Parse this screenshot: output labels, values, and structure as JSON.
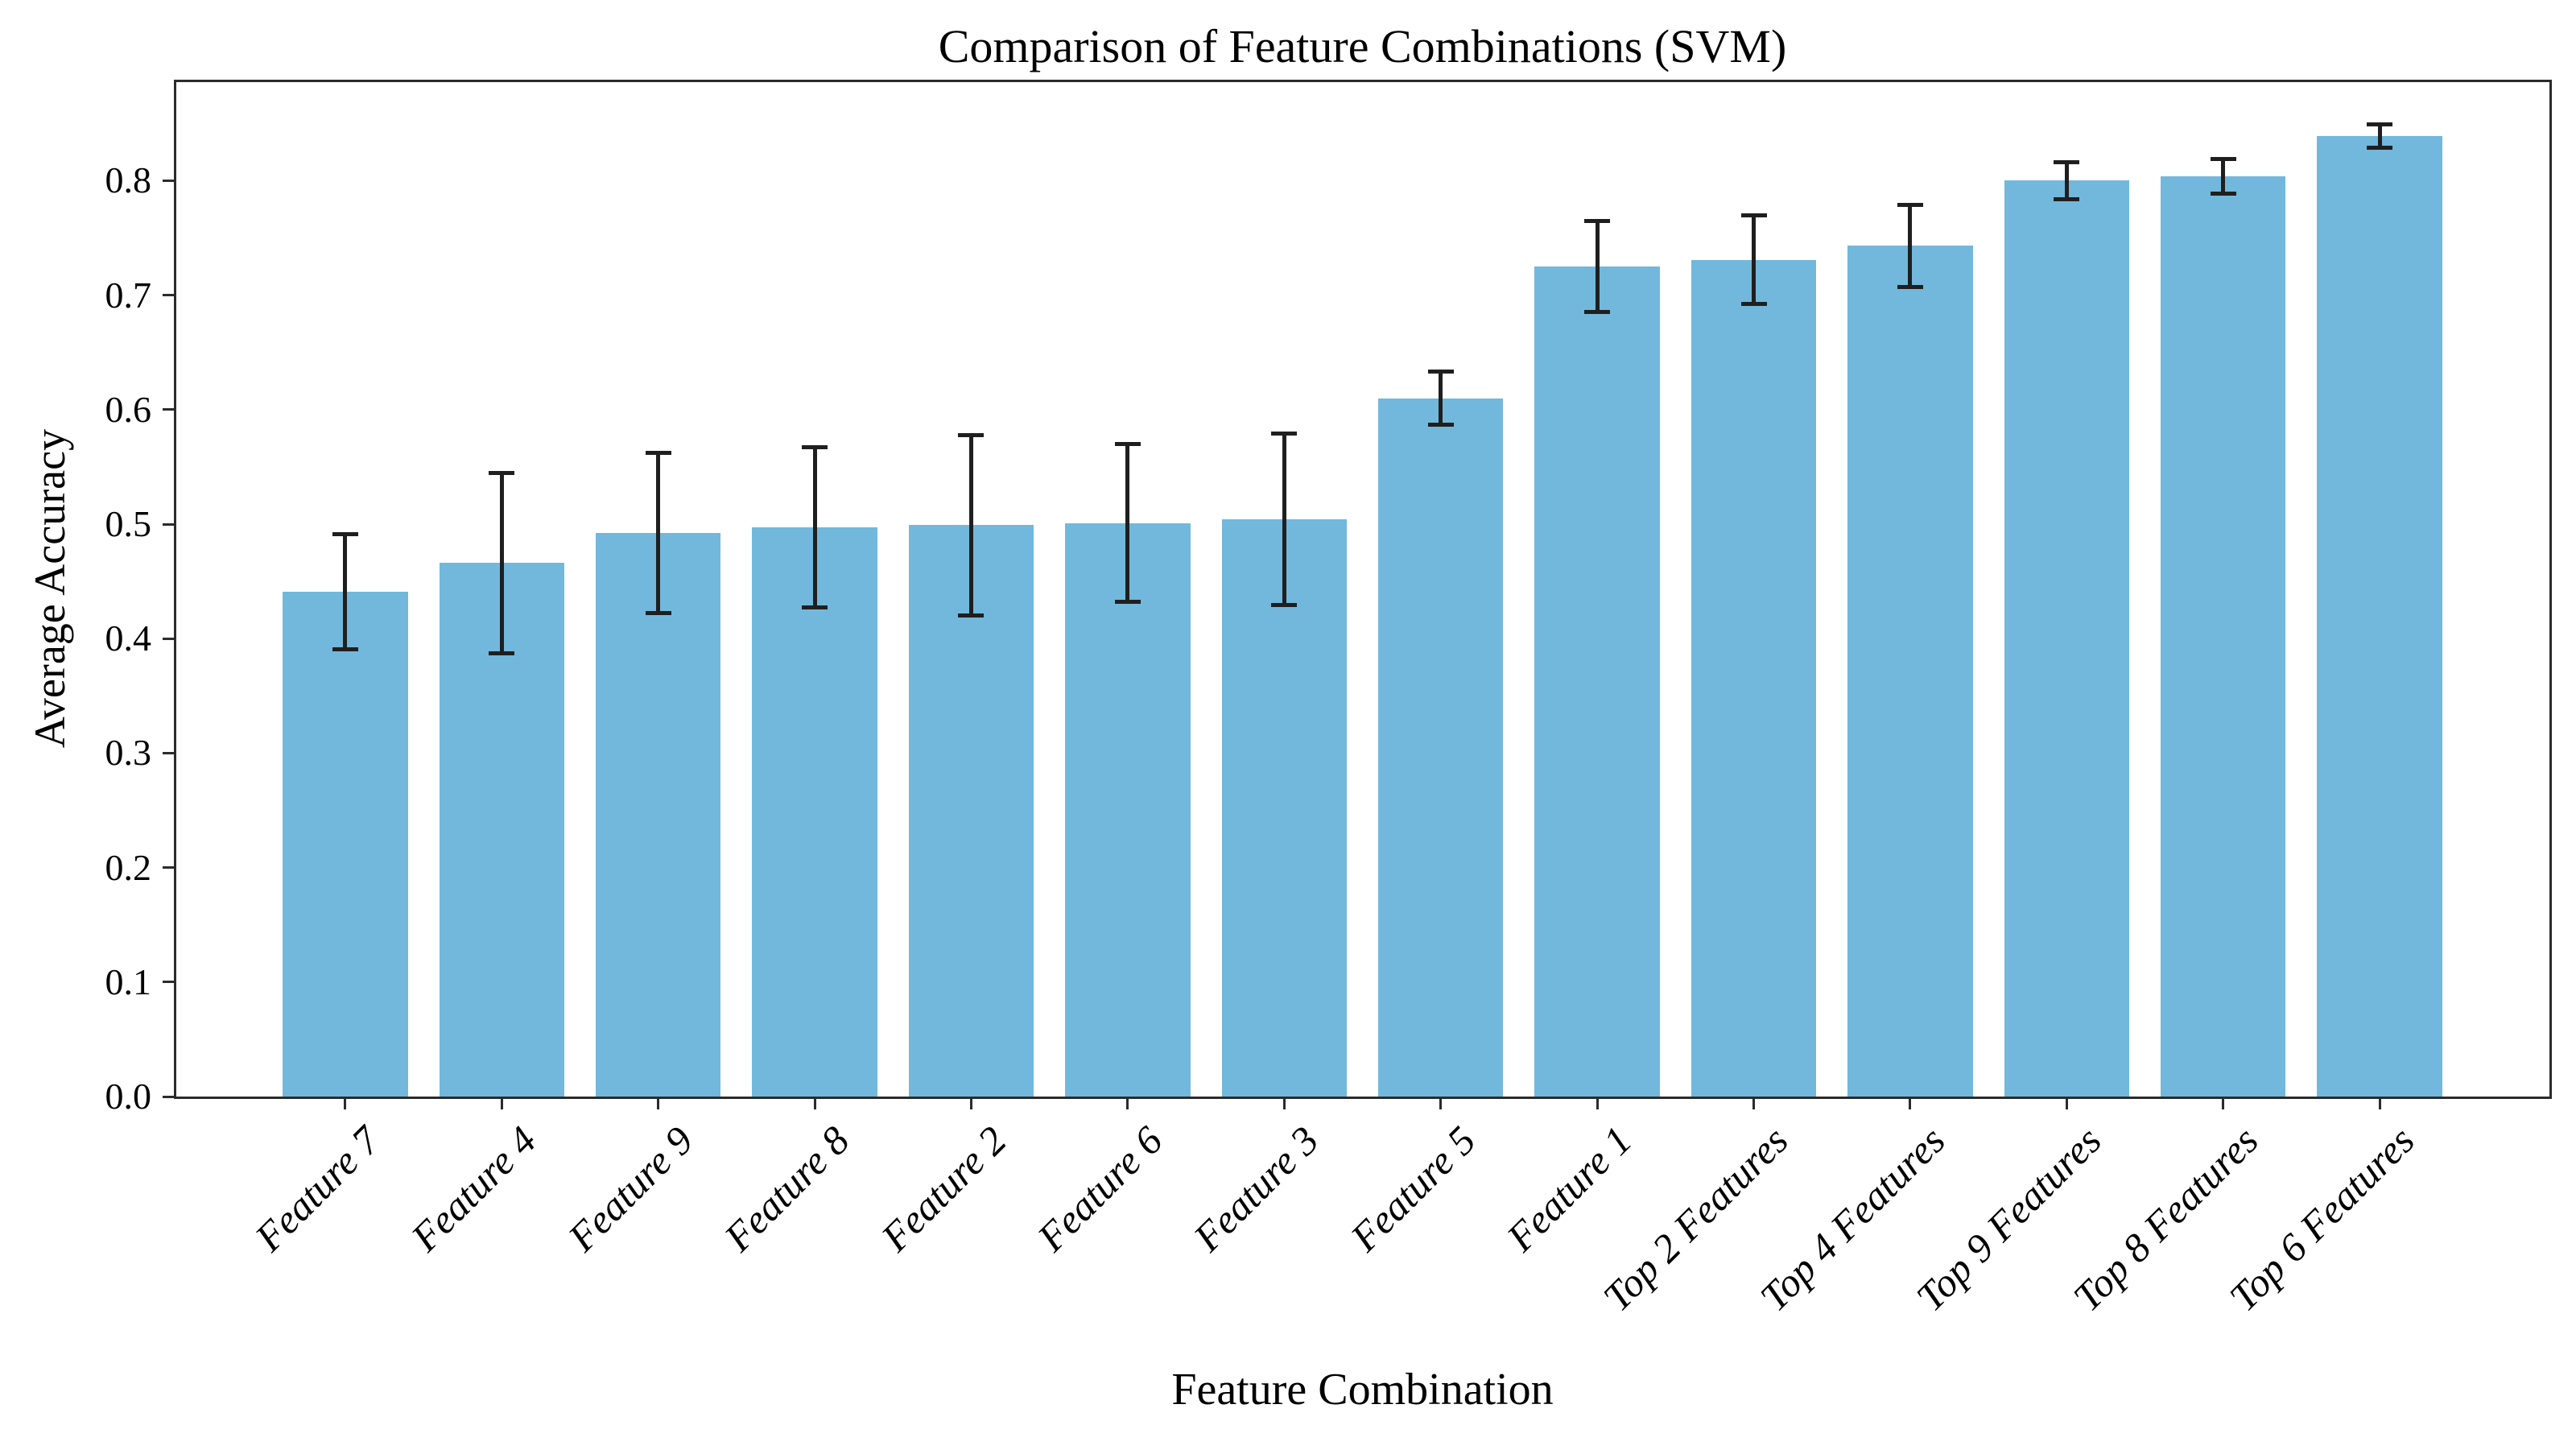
{
  "chart_data": {
    "type": "bar",
    "title": "Comparison of Feature Combinations (SVM)",
    "xlabel": "Feature Combination",
    "ylabel": "Average Accuracy",
    "categories": [
      "Feature 7",
      "Feature 4",
      "Feature 9",
      "Feature 8",
      "Feature 2",
      "Feature 6",
      "Feature 3",
      "Feature 5",
      "Feature 1",
      "Top 2 Features",
      "Top 4 Features",
      "Top 9 Features",
      "Top 8 Features",
      "Top 6 Features"
    ],
    "values": [
      0.441,
      0.466,
      0.492,
      0.497,
      0.499,
      0.501,
      0.504,
      0.61,
      0.725,
      0.731,
      0.743,
      0.8,
      0.804,
      0.839
    ],
    "error_bars": [
      0.05,
      0.079,
      0.07,
      0.07,
      0.079,
      0.069,
      0.075,
      0.023,
      0.04,
      0.039,
      0.036,
      0.016,
      0.015,
      0.01
    ],
    "yticks": [
      0.0,
      0.1,
      0.2,
      0.3,
      0.4,
      0.5,
      0.6,
      0.7,
      0.8
    ],
    "ytick_format_decimals": 1,
    "ylim": [
      0,
      0.8875
    ],
    "bar_width_fraction": 0.8,
    "bar_color": "#72b8dc",
    "error_color": "#1f1f1f",
    "spine_color": "#2b2b2b",
    "grid": false
  }
}
